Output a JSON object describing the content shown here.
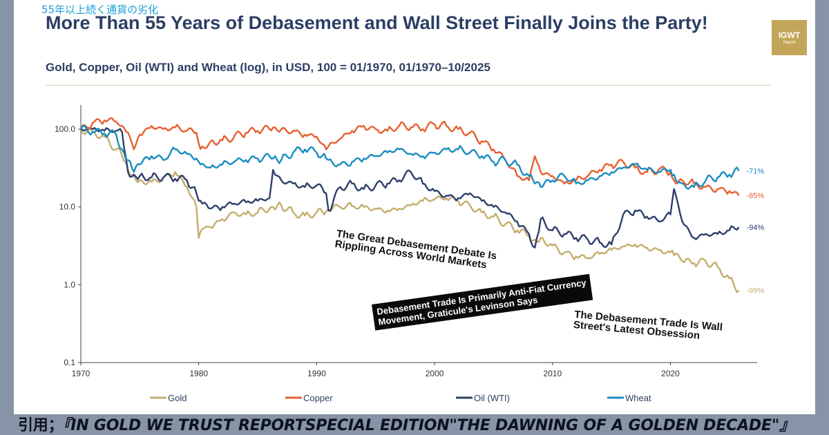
{
  "header": {
    "jp_title": "55年以上続く通貨の劣化",
    "title": "More Than 55 Years of Debasement and Wall Street Finally Joins the Party!",
    "subtitle": "Gold, Copper, Oil (WTI) and Wheat (log), in USD, 100 = 01/1970, 01/1970–10/2025",
    "logo_line1": "IGWT",
    "logo_line2": "Report",
    "logo_color": "#c3a55a"
  },
  "headlines": [
    "The Great Debasement Debate Is Rippling Across World Markets",
    "Debasement Trade Is Primarily Anti-Fiat Currency Movement, Graticule's Levinson Says",
    "The Debasement Trade Is Wall Street's Latest Obsession"
  ],
  "headline_lines": {
    "h1a": "The Great Debasement Debate Is",
    "h1b": "Rippling Across World Markets",
    "h2a": "Debasement Trade Is Primarily Anti-Fiat Currency",
    "h2b": "Movement, Graticule's Levinson Says",
    "h3a": "The Debasement Trade Is Wall",
    "h3b": "Street's Latest Obsession"
  },
  "footer": {
    "prefix": "引用；",
    "citation": "『IN GOLD WE TRUST REPORTSPECIAL EDITION\"THE DAWNING OF A GOLDEN DECADE\"』"
  },
  "chart_data": {
    "type": "line",
    "title": "More Than 55 Years of Debasement and Wall Street Finally Joins the Party!",
    "subtitle": "Gold, Copper, Oil (WTI) and Wheat (log), in USD, 100 = 01/1970, 01/1970–10/2025",
    "xlabel": "",
    "ylabel": "",
    "yscale": "log",
    "ylim": [
      0.1,
      150
    ],
    "xlim": [
      1970,
      2026
    ],
    "yticks": [
      0.1,
      1.0,
      10.0,
      100.0
    ],
    "ytick_labels": [
      "0.1",
      "1.0",
      "10.0",
      "100.0"
    ],
    "xticks": [
      1970,
      1980,
      1990,
      2000,
      2010,
      2020
    ],
    "xtick_labels": [
      "1970",
      "1980",
      "1990",
      "2000",
      "2010",
      "2020"
    ],
    "grid": false,
    "legend": "bottom",
    "x": [
      1970,
      1971,
      1972,
      1973,
      1973.5,
      1974,
      1974.5,
      1975,
      1976,
      1977,
      1978,
      1979,
      1979.8,
      1980,
      1980.3,
      1981,
      1982,
      1983,
      1984,
      1985,
      1986,
      1986.3,
      1987,
      1988,
      1989,
      1990,
      1990.8,
      1991,
      1992,
      1993,
      1994,
      1995,
      1996,
      1997,
      1998,
      1999,
      2000,
      2001,
      2002,
      2003,
      2004,
      2005,
      2006,
      2007,
      2008,
      2008.5,
      2009,
      2010,
      2011,
      2012,
      2013,
      2014,
      2015,
      2016,
      2017,
      2018,
      2019,
      2020,
      2020.3,
      2021,
      2022,
      2023,
      2024,
      2025,
      2025.8
    ],
    "series": [
      {
        "name": "Gold",
        "color": "#c4ad6e",
        "end_label": "-99%",
        "values": [
          100,
          92,
          80,
          55,
          45,
          30,
          25,
          22,
          21,
          24,
          28,
          18,
          10,
          4.0,
          5.2,
          5.5,
          7.0,
          8.5,
          8.0,
          8.5,
          9.5,
          10.0,
          10.5,
          8.5,
          7.8,
          8.5,
          8.8,
          9.2,
          10.0,
          10.2,
          10.0,
          9.5,
          9.0,
          9.5,
          10.5,
          12.0,
          12.5,
          13.0,
          12.0,
          10.5,
          8.5,
          7.5,
          6.0,
          5.0,
          4.2,
          3.8,
          4.0,
          3.2,
          2.6,
          2.3,
          2.2,
          2.5,
          2.8,
          3.1,
          3.3,
          3.0,
          2.8,
          2.6,
          2.4,
          2.0,
          1.9,
          2.0,
          1.7,
          1.2,
          0.85
        ]
      },
      {
        "name": "Copper",
        "color": "#e6602f",
        "end_label": "-85%",
        "values": [
          100,
          120,
          130,
          125,
          110,
          90,
          55,
          85,
          110,
          100,
          105,
          95,
          90,
          65,
          60,
          70,
          72,
          80,
          90,
          95,
          100,
          105,
          100,
          95,
          85,
          80,
          55,
          60,
          75,
          95,
          110,
          100,
          95,
          110,
          105,
          100,
          115,
          110,
          100,
          90,
          70,
          55,
          40,
          25,
          22,
          45,
          28,
          25,
          20,
          22,
          25,
          30,
          35,
          38,
          32,
          28,
          30,
          28,
          22,
          22,
          20,
          18,
          17,
          16,
          14
        ]
      },
      {
        "name": "Oil (WTI)",
        "color": "#2d3f6b",
        "end_label": "-94%",
        "values": [
          100,
          100,
          95,
          95,
          92,
          28,
          26,
          25,
          24,
          24,
          23,
          22,
          15,
          12,
          11,
          9.5,
          10,
          11,
          11.5,
          12,
          13,
          30,
          22,
          20,
          18,
          19,
          15,
          9.0,
          18,
          20,
          17,
          19,
          20,
          22,
          28,
          20,
          16,
          14,
          13,
          15,
          12,
          10,
          8.5,
          6.5,
          4.5,
          3.0,
          7.0,
          5.0,
          4.5,
          4.0,
          3.8,
          3.5,
          3.3,
          8.0,
          9.0,
          7.5,
          6.5,
          8.0,
          17,
          6.5,
          4.0,
          4.5,
          4.5,
          5.0,
          5.5
        ]
      },
      {
        "name": "Wheat",
        "color": "#1a8cc0",
        "end_label": "-71%",
        "values": [
          100,
          92,
          88,
          85,
          55,
          40,
          28,
          35,
          45,
          40,
          55,
          48,
          42,
          38,
          36,
          32,
          35,
          38,
          40,
          42,
          45,
          42,
          40,
          50,
          55,
          50,
          42,
          40,
          35,
          38,
          42,
          45,
          50,
          55,
          48,
          45,
          50,
          55,
          55,
          50,
          45,
          38,
          40,
          35,
          25,
          20,
          18,
          22,
          25,
          20,
          22,
          25,
          28,
          32,
          35,
          30,
          28,
          30,
          26,
          20,
          18,
          22,
          24,
          26,
          29
        ]
      }
    ]
  }
}
